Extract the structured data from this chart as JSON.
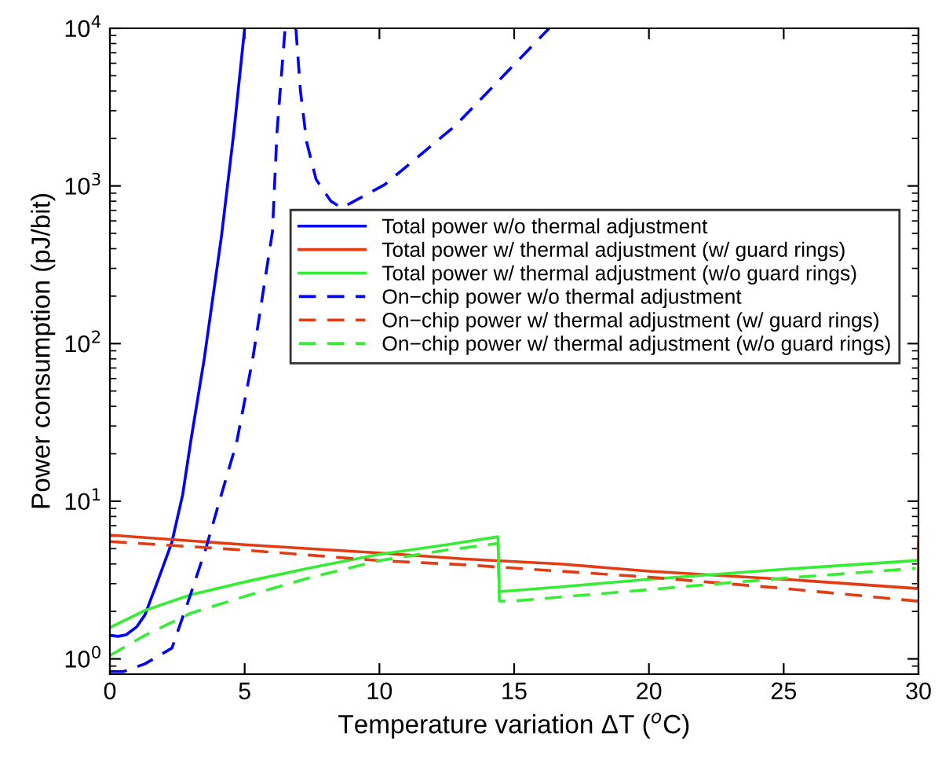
{
  "chart_data": {
    "type": "line",
    "xlabel": "Temperature variation ΔT ($^{o}$C)",
    "ylabel": "Power consumption (pJ/bit)",
    "log": "y",
    "xlim": [
      0,
      30
    ],
    "ylim": [
      0.8,
      10000
    ],
    "xticks": [
      0,
      5,
      10,
      15,
      20,
      25,
      30
    ],
    "yticks": [
      {
        "value": 1,
        "label": "10$^{0}$"
      },
      {
        "value": 10,
        "label": "10$^{1}$"
      },
      {
        "value": 100,
        "label": "10$^{2}$"
      },
      {
        "value": 1000,
        "label": "10$^{3}$"
      },
      {
        "value": 10000,
        "label": "10$^{4}$"
      }
    ],
    "grid": false,
    "legend": "center",
    "marker": "none",
    "series": [
      {
        "name": "Total power w/o thermal adjustment",
        "color": "#0000ff",
        "line_style": "solid",
        "x": [
          0,
          0.3,
          0.6,
          1.0,
          1.3,
          1.8,
          2.3,
          2.7,
          3.0,
          3.5,
          4.14,
          4.6,
          5.0
        ],
        "values": [
          1.41,
          1.39,
          1.42,
          1.6,
          1.9,
          3.2,
          5.5,
          11,
          24,
          80,
          480,
          2200,
          10000
        ]
      },
      {
        "name": "Total power w/ thermal adjustment (w/ guard rings)",
        "color": "#e33c12",
        "line_style": "solid",
        "x": [
          0,
          5,
          10,
          13.2,
          16.7,
          20,
          25,
          29.9,
          30,
          30
        ],
        "values": [
          6.1,
          5.3,
          4.7,
          4.3,
          4.0,
          3.6,
          3.2,
          2.8,
          2.8,
          5.8
        ]
      },
      {
        "name": "Total power w/ thermal adjustment (w/o guard rings)",
        "color": "#33ee33",
        "line_style": "solid",
        "x": [
          0,
          1.3,
          3,
          5.2,
          7.5,
          10,
          12.5,
          14.4,
          14.45,
          16.7,
          20,
          25,
          29.9
        ],
        "values": [
          1.58,
          2.03,
          2.55,
          3.13,
          3.8,
          4.6,
          5.3,
          5.95,
          2.67,
          2.86,
          3.2,
          3.7,
          4.2
        ]
      },
      {
        "name": "On−chip power w/o thermal adjustment",
        "color": "#0000ff",
        "line_style": "dashed",
        "x": [
          0,
          0.5,
          1.3,
          2.3,
          2.9,
          3.55,
          4.1,
          4.7,
          5.3,
          6.03,
          6.2,
          6.5,
          6.7,
          6.9,
          7.07,
          7.3,
          7.65,
          8.2,
          8.6,
          10.2,
          12.8,
          14.5,
          16.3
        ],
        "values": [
          0.83,
          0.83,
          0.93,
          1.17,
          2.3,
          4.95,
          10.5,
          23.5,
          80,
          510,
          2200,
          10000,
          null,
          10000,
          4000,
          1900,
          1100,
          800,
          725,
          1020,
          2400,
          4800,
          10000
        ]
      },
      {
        "name": "On−chip power w/ thermal adjustment (w/ guard rings)",
        "color": "#e33c12",
        "line_style": "dashed",
        "x": [
          0,
          5,
          10,
          13.2,
          16.7,
          20,
          25,
          29.9,
          30,
          30
        ],
        "values": [
          5.55,
          4.9,
          4.2,
          3.95,
          3.6,
          3.3,
          2.8,
          2.33,
          2.33,
          6.2
        ]
      },
      {
        "name": "On−chip power w/ thermal adjustment (w/o guard rings)",
        "color": "#33ee33",
        "line_style": "dashed",
        "x": [
          0,
          1.3,
          3,
          5.2,
          7.5,
          10,
          12.5,
          14.4,
          14.45,
          15,
          20,
          25,
          29.9
        ],
        "values": [
          1.05,
          1.41,
          1.95,
          2.55,
          3.3,
          4.2,
          4.9,
          5.4,
          2.33,
          2.33,
          2.75,
          3.25,
          3.75
        ]
      }
    ]
  }
}
